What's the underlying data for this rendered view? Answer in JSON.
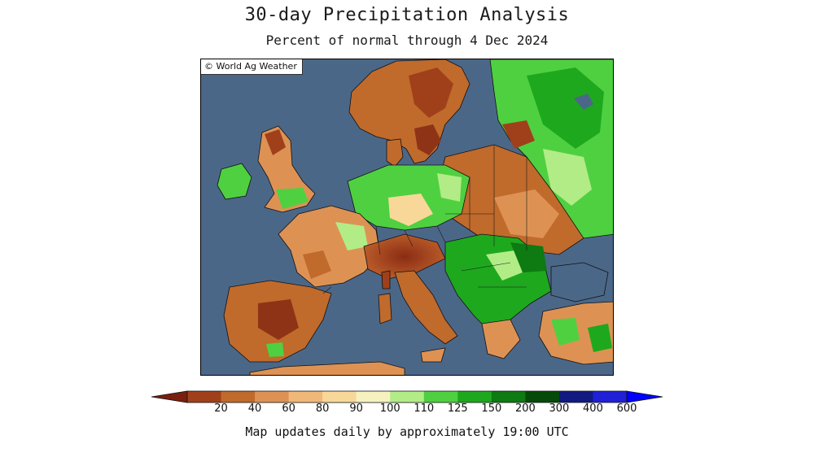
{
  "title": "30-day Precipitation Analysis",
  "subtitle": "Percent of normal through 4 Dec 2024",
  "credit": "© World Ag Weather",
  "footer": "Map updates daily by approximately 19:00 UTC",
  "colors": {
    "sea": "#4b6788",
    "border": "#1a1a1a"
  },
  "legend": {
    "low_arrow_color": "#7a1f10",
    "high_arrow_color": "#0000ff",
    "bins": [
      {
        "color": "#a0401a"
      },
      {
        "color": "#c06a2c"
      },
      {
        "color": "#dd9254"
      },
      {
        "color": "#f0b878"
      },
      {
        "color": "#f8d898"
      },
      {
        "color": "#f6f2c0"
      },
      {
        "color": "#b2ec86"
      },
      {
        "color": "#4fd040"
      },
      {
        "color": "#1ea81e"
      },
      {
        "color": "#0d7a12"
      },
      {
        "color": "#064a0a"
      },
      {
        "color": "#101a80"
      },
      {
        "color": "#2020d8"
      }
    ],
    "labels": [
      "20",
      "40",
      "60",
      "80",
      "90",
      "100",
      "110",
      "125",
      "150",
      "200",
      "300",
      "400",
      "600"
    ]
  }
}
